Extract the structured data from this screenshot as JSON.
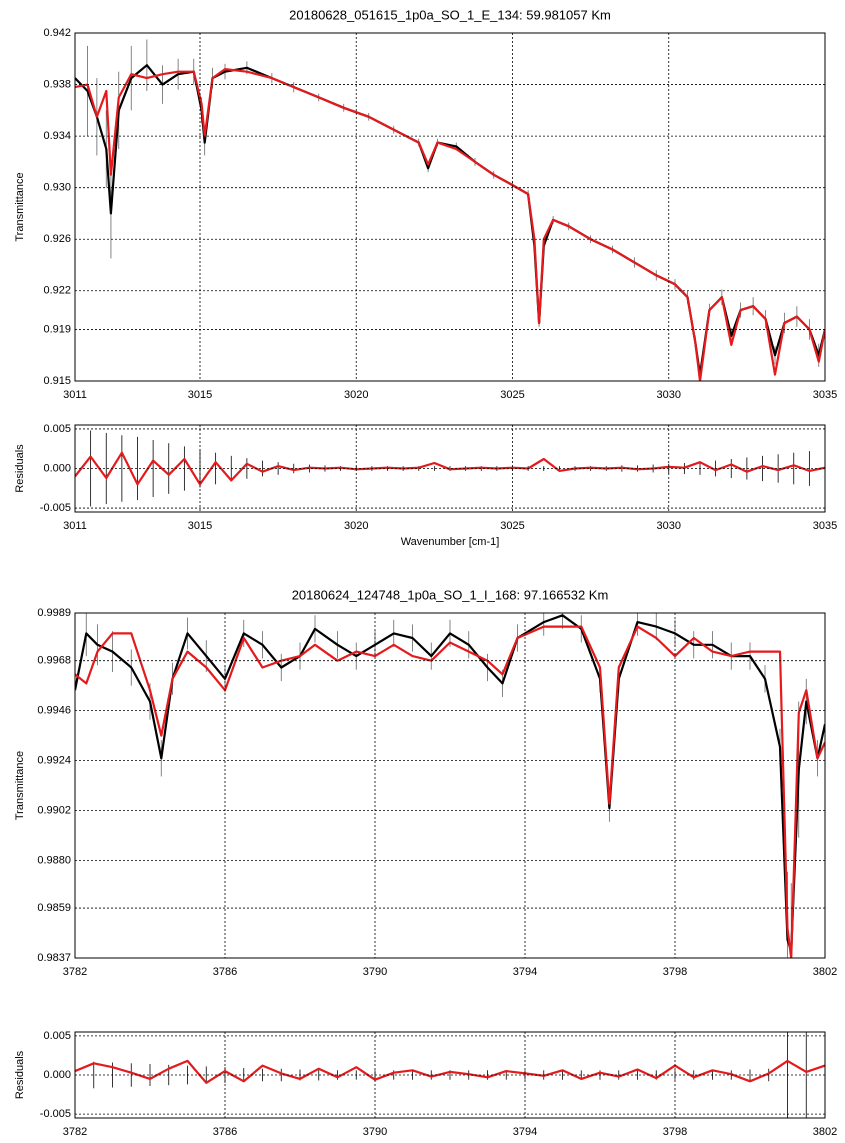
{
  "chart_data": [
    {
      "type": "line",
      "title": "20180628_051615_1p0a_SO_1_E_134: 59.981057 Km",
      "ylabel": "Transmittance",
      "x": [
        3011,
        3011.4,
        3011.7,
        3012,
        3012.15,
        3012.4,
        3012.8,
        3013.3,
        3013.8,
        3014.3,
        3014.8,
        3015.05,
        3015.15,
        3015.4,
        3015.8,
        3016.5,
        3017.3,
        3018,
        3018.8,
        3019.6,
        3020.4,
        3021.2,
        3022,
        3022.3,
        3022.6,
        3023.2,
        3023.8,
        3024.4,
        3025,
        3025.5,
        3025.7,
        3025.85,
        3026,
        3026.3,
        3026.8,
        3027.5,
        3028.2,
        3028.9,
        3029.6,
        3030.2,
        3030.6,
        3030.85,
        3031,
        3031.3,
        3031.7,
        3032,
        3032.3,
        3032.7,
        3033.1,
        3033.4,
        3033.7,
        3034.1,
        3034.5,
        3034.8,
        3035
      ],
      "series": [
        {
          "color": "#000000",
          "values": [
            0.9385,
            0.9375,
            0.9355,
            0.933,
            0.928,
            0.936,
            0.9385,
            0.9395,
            0.938,
            0.9388,
            0.939,
            0.936,
            0.9335,
            0.9385,
            0.939,
            0.9393,
            0.9385,
            0.9378,
            0.937,
            0.9362,
            0.9355,
            0.9345,
            0.9335,
            0.9315,
            0.9335,
            0.9332,
            0.932,
            0.931,
            0.9302,
            0.9295,
            0.9255,
            0.9195,
            0.9255,
            0.9275,
            0.927,
            0.926,
            0.9252,
            0.9242,
            0.9232,
            0.9225,
            0.9215,
            0.918,
            0.9155,
            0.9205,
            0.9215,
            0.9185,
            0.9205,
            0.9208,
            0.9198,
            0.917,
            0.9195,
            0.92,
            0.919,
            0.917,
            0.919
          ],
          "errors": [
            0.004,
            0.0035,
            0.003,
            0.003,
            0.0035,
            0.003,
            0.0025,
            0.002,
            0.0015,
            0.0012,
            0.001,
            0.001,
            0.001,
            0.0008,
            0.0006,
            0.0005,
            0.0004,
            0.0004,
            0.0003,
            0.0003,
            0.0003,
            0.0003,
            0.0003,
            0.0003,
            0.0003,
            0.0003,
            0.0003,
            0.0003,
            0.0003,
            0.0003,
            0.0003,
            0.0003,
            0.0003,
            0.0003,
            0.0003,
            0.0003,
            0.0003,
            0.0004,
            0.0004,
            0.0004,
            0.0005,
            0.0005,
            0.0005,
            0.0005,
            0.0006,
            0.0006,
            0.0006,
            0.0007,
            0.0007,
            0.0007,
            0.0008,
            0.0008,
            0.0008,
            0.0009,
            0.0009
          ]
        },
        {
          "color": "#e41a1c",
          "values": [
            0.9378,
            0.938,
            0.9355,
            0.9375,
            0.931,
            0.937,
            0.9388,
            0.9385,
            0.9388,
            0.939,
            0.939,
            0.9365,
            0.934,
            0.9385,
            0.9392,
            0.939,
            0.9385,
            0.9378,
            0.937,
            0.9362,
            0.9355,
            0.9345,
            0.9335,
            0.9318,
            0.9335,
            0.933,
            0.932,
            0.931,
            0.9302,
            0.9295,
            0.926,
            0.9195,
            0.926,
            0.9275,
            0.927,
            0.926,
            0.9252,
            0.9242,
            0.9232,
            0.9225,
            0.9215,
            0.918,
            0.915,
            0.9205,
            0.9215,
            0.9178,
            0.9205,
            0.9208,
            0.9198,
            0.9155,
            0.9195,
            0.92,
            0.919,
            0.9165,
            0.919
          ]
        }
      ],
      "xlim": [
        3011,
        3035
      ],
      "xticks": [
        3011,
        3015,
        3020,
        3025,
        3030,
        3035
      ],
      "ylim": [
        0.915,
        0.942
      ],
      "yticks": [
        0.942,
        0.938,
        0.934,
        {
          "value": 0.93,
          "label": "0.930"
        },
        0.926,
        0.922,
        0.919,
        0.915
      ],
      "grid": true
    },
    {
      "type": "residual",
      "ylabel": "Residuals",
      "xlabel": "Wavenumber [cm-1]",
      "x": [
        3011,
        3011.5,
        3012,
        3012.5,
        3013,
        3013.5,
        3014,
        3014.5,
        3015,
        3015.5,
        3016,
        3016.5,
        3017,
        3017.5,
        3018,
        3018.5,
        3019,
        3019.5,
        3020,
        3020.5,
        3021,
        3021.5,
        3022,
        3022.5,
        3023,
        3023.5,
        3024,
        3024.5,
        3025,
        3025.5,
        3026,
        3026.5,
        3027,
        3027.5,
        3028,
        3028.5,
        3029,
        3029.5,
        3030,
        3030.5,
        3031,
        3031.5,
        3032,
        3032.5,
        3033,
        3033.5,
        3034,
        3034.5,
        3035
      ],
      "series": [
        {
          "color": "#e41a1c",
          "values": [
            -0.001,
            0.0015,
            -0.0012,
            0.002,
            -0.002,
            0.001,
            -0.0008,
            0.0012,
            -0.002,
            0.0008,
            -0.0015,
            0.0006,
            -0.0004,
            0.0003,
            -0.0002,
            0.0001,
            0,
            0.0001,
            -0.0001,
            0,
            0.0001,
            0,
            0.0001,
            0.0007,
            -0.0001,
            0,
            0.0001,
            0,
            0.0001,
            0,
            0.0012,
            -0.0003,
            0,
            0.0001,
            0,
            0.0001,
            -0.0001,
            0,
            0.0002,
            0.0001,
            0.0008,
            -0.0002,
            0.0005,
            -0.0004,
            0.0003,
            -0.0002,
            0.0004,
            -0.0003,
            0.0001
          ]
        }
      ],
      "errors": [
        0.005,
        0.0048,
        0.0045,
        0.0042,
        0.004,
        0.0036,
        0.0032,
        0.0028,
        0.0024,
        0.002,
        0.0016,
        0.0013,
        0.001,
        0.0008,
        0.0006,
        0.0005,
        0.0004,
        0.0003,
        0.0003,
        0.0003,
        0.0003,
        0.0003,
        0.0003,
        0.0003,
        0.0003,
        0.0003,
        0.0003,
        0.0003,
        0.0003,
        0.0003,
        0.0003,
        0.0003,
        0.0003,
        0.0003,
        0.0003,
        0.0004,
        0.0004,
        0.0005,
        0.0006,
        0.0007,
        0.0008,
        0.001,
        0.0012,
        0.0014,
        0.0016,
        0.0018,
        0.002,
        0.0022,
        0.0024
      ],
      "xlim": [
        3011,
        3035
      ],
      "xticks": [
        3011,
        3015,
        3020,
        3025,
        3030,
        3035
      ],
      "ylim": [
        -0.0055,
        0.0055
      ],
      "yticks": [
        0.005,
        {
          "value": 0,
          "label": "0.000"
        },
        -0.005
      ],
      "grid": true
    },
    {
      "type": "line",
      "title": "20180624_124748_1p0a_SO_1_I_168: 97.166532 Km",
      "ylabel": "Transmittance",
      "x": [
        3782,
        3782.3,
        3782.6,
        3783,
        3783.5,
        3784,
        3784.3,
        3784.6,
        3785,
        3785.5,
        3786,
        3786.5,
        3787,
        3787.5,
        3788,
        3788.4,
        3789,
        3789.5,
        3790,
        3790.5,
        3791,
        3791.5,
        3792,
        3792.5,
        3793,
        3793.4,
        3793.8,
        3794.5,
        3795,
        3795.5,
        3796,
        3796.25,
        3796.5,
        3797,
        3797.5,
        3798,
        3798.5,
        3799,
        3799.5,
        3800,
        3800.4,
        3800.8,
        3801,
        3801.1,
        3801.3,
        3801.5,
        3801.8,
        3802
      ],
      "series": [
        {
          "color": "#000000",
          "values": [
            0.9955,
            0.998,
            0.9975,
            0.9972,
            0.9965,
            0.995,
            0.9925,
            0.996,
            0.998,
            0.997,
            0.996,
            0.998,
            0.9975,
            0.9965,
            0.997,
            0.9982,
            0.9975,
            0.997,
            0.9975,
            0.998,
            0.9978,
            0.997,
            0.998,
            0.9975,
            0.9965,
            0.9958,
            0.9978,
            0.9985,
            0.9988,
            0.9982,
            0.996,
            0.9903,
            0.996,
            0.9985,
            0.9983,
            0.998,
            0.9975,
            0.9975,
            0.997,
            0.997,
            0.996,
            0.993,
            0.9845,
            0.984,
            0.992,
            0.995,
            0.9925,
            0.994
          ],
          "errors": [
            0.001,
            0.001,
            0.0009,
            0.0009,
            0.0008,
            0.0008,
            0.0008,
            0.0007,
            0.0007,
            0.0007,
            0.0006,
            0.0006,
            0.0006,
            0.0006,
            0.0006,
            0.0006,
            0.0006,
            0.0006,
            0.0006,
            0.0006,
            0.0006,
            0.0006,
            0.0006,
            0.0006,
            0.0006,
            0.0006,
            0.0006,
            0.0006,
            0.0006,
            0.0006,
            0.0006,
            0.0006,
            0.0006,
            0.0006,
            0.0006,
            0.0006,
            0.0006,
            0.0006,
            0.0006,
            0.0006,
            0.0006,
            0.0008,
            0.003,
            0.003,
            0.003,
            0.001,
            0.0008,
            0.0008
          ]
        },
        {
          "color": "#e41a1c",
          "values": [
            0.9962,
            0.9958,
            0.9972,
            0.998,
            0.998,
            0.9955,
            0.9935,
            0.996,
            0.9972,
            0.9965,
            0.9955,
            0.9978,
            0.9965,
            0.9968,
            0.997,
            0.9975,
            0.9968,
            0.9972,
            0.997,
            0.9975,
            0.997,
            0.9968,
            0.9976,
            0.9972,
            0.9968,
            0.9962,
            0.9978,
            0.9983,
            0.9983,
            0.9983,
            0.9965,
            0.9905,
            0.9965,
            0.9983,
            0.9978,
            0.997,
            0.9978,
            0.9972,
            0.997,
            0.9972,
            0.9972,
            0.9972,
            0.985,
            0.9837,
            0.9945,
            0.9955,
            0.9925,
            0.9932
          ]
        }
      ],
      "xlim": [
        3782,
        3802
      ],
      "xticks": [
        3782,
        3786,
        3790,
        3794,
        3798,
        3802
      ],
      "ylim": [
        0.9837,
        0.9989
      ],
      "yticks": [
        0.9989,
        0.9968,
        0.9946,
        0.9924,
        0.9902,
        {
          "value": 0.988,
          "label": "0.9880"
        },
        0.9859,
        0.9837
      ],
      "grid": true
    },
    {
      "type": "residual",
      "ylabel": "Residuals",
      "xlabel": "Wavenumber [cm-1]",
      "x": [
        3782,
        3782.5,
        3783,
        3783.5,
        3784,
        3784.5,
        3785,
        3785.5,
        3786,
        3786.5,
        3787,
        3787.5,
        3788,
        3788.5,
        3789,
        3789.5,
        3790,
        3790.5,
        3791,
        3791.5,
        3792,
        3792.5,
        3793,
        3793.5,
        3794,
        3794.5,
        3795,
        3795.5,
        3796,
        3796.5,
        3797,
        3797.5,
        3798,
        3798.5,
        3799,
        3799.5,
        3800,
        3800.5,
        3801,
        3801.5,
        3802
      ],
      "series": [
        {
          "color": "#e41a1c",
          "values": [
            0.0005,
            0.0015,
            0.001,
            0.0003,
            -0.0005,
            0.0008,
            0.0018,
            -0.001,
            0.0005,
            -0.0008,
            0.0012,
            0.0002,
            -0.0005,
            0.0008,
            -0.0003,
            0.001,
            -0.0006,
            0.0003,
            0.0006,
            -0.0002,
            0.0004,
            0.0001,
            -0.0003,
            0.0005,
            0.0002,
            -0.0001,
            0.0006,
            -0.0005,
            0.0003,
            -0.0002,
            0.0007,
            -0.0004,
            0.0012,
            -0.0003,
            0.0006,
            0.0001,
            -0.0008,
            0.0002,
            0.0018,
            0.0004,
            0.0012
          ]
        }
      ],
      "errors": [
        0.0018,
        0.0017,
        0.0016,
        0.0015,
        0.0014,
        0.0013,
        0.0012,
        0.0011,
        0.001,
        0.0009,
        0.0008,
        0.0008,
        0.0007,
        0.0007,
        0.0006,
        0.0006,
        0.0006,
        0.0006,
        0.0006,
        0.0006,
        0.0006,
        0.0006,
        0.0006,
        0.0006,
        0.0006,
        0.0006,
        0.0006,
        0.0006,
        0.0006,
        0.0006,
        0.0006,
        0.0006,
        0.0006,
        0.0006,
        0.0006,
        0.0006,
        0.0007,
        0.0008,
        0.006,
        0.006,
        0.0009
      ],
      "xlim": [
        3782,
        3802
      ],
      "xticks": [
        3782,
        3786,
        3790,
        3794,
        3798,
        3802
      ],
      "ylim": [
        -0.0055,
        0.0055
      ],
      "yticks": [
        0.005,
        {
          "value": 0,
          "label": "0.000"
        },
        -0.005
      ],
      "grid": true
    }
  ]
}
